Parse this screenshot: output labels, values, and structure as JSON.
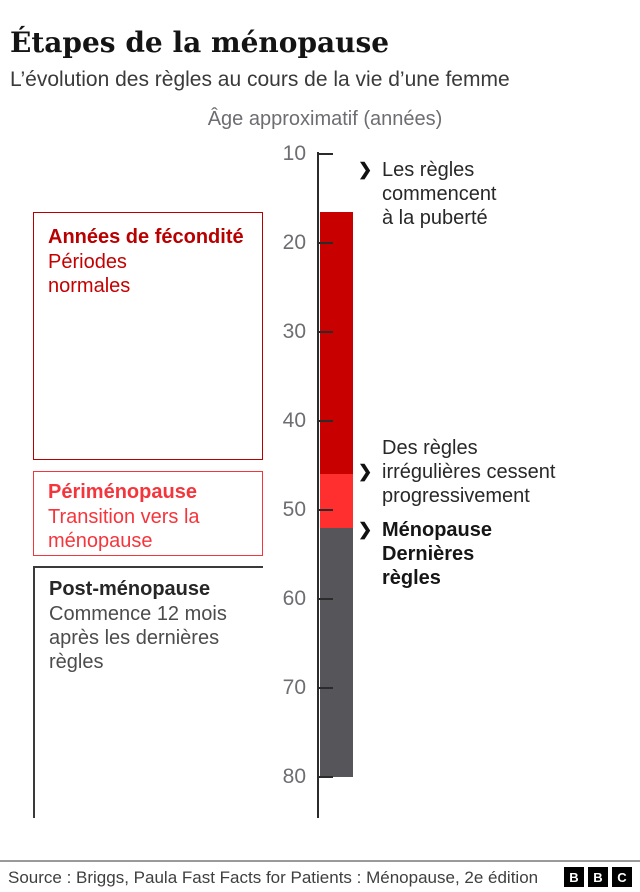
{
  "header": {
    "title": "Étapes de la ménopause",
    "subtitle": "L’évolution des règles au cours de la vie d’une femme"
  },
  "chart_data": {
    "type": "bar",
    "title": "Étapes de la ménopause",
    "subtitle": "L’évolution des règles au cours de la vie d’une femme",
    "axis_title": "Âge approximatif (années)",
    "axis_ticks": [
      10,
      20,
      30,
      40,
      50,
      60,
      70,
      80
    ],
    "axis_range": [
      10,
      84
    ],
    "axis_unit": "années",
    "grid": false,
    "legend_position": "none",
    "segments": [
      {
        "id": "fecondite",
        "label": "Années de fécondité",
        "age_start": 16.5,
        "age_end": 46,
        "color": "#c80000"
      },
      {
        "id": "perimenopause",
        "label": "Périménopause",
        "age_start": 46,
        "age_end": 52,
        "color": "#ff2f2f"
      },
      {
        "id": "postmenopause",
        "label": "Post-ménopause",
        "age_start": 52,
        "age_end": 80,
        "color": "#55555a"
      }
    ]
  },
  "stages": [
    {
      "title": "Années de fécondité",
      "lines": [
        "Périodes",
        "normales"
      ],
      "title_color": "#b80000",
      "body_color": "#c40000",
      "border_color": "#b80000"
    },
    {
      "title": "Périménopause",
      "lines": [
        "Transition vers la",
        "ménopause"
      ],
      "title_color": "#f5353c",
      "body_color": "#f5353c",
      "border_color": "#f5353c"
    },
    {
      "title": "Post-ménopause",
      "lines": [
        "Commence 12 mois",
        "après les dernières",
        "règles"
      ],
      "title_color": "#262626",
      "body_color": "#4c4c4c",
      "border_color": "#3a3a3a"
    }
  ],
  "annotations": [
    {
      "marker": "❯",
      "age": 12,
      "lines": [
        "Les règles",
        "commencent",
        "à la puberté"
      ]
    },
    {
      "marker": "❯",
      "age": 46,
      "lines": [
        "Des règles",
        "irrégulières cessent",
        "progressivement"
      ]
    },
    {
      "marker": "❯",
      "age": 52,
      "lines": [
        "Ménopause",
        "Dernières",
        "règles"
      ],
      "emphasis": "bold"
    }
  ],
  "footer": {
    "source": "Source : Briggs, Paula Fast Facts for Patients : Ménopause, 2e édition",
    "logo": [
      "B",
      "B",
      "C"
    ]
  }
}
